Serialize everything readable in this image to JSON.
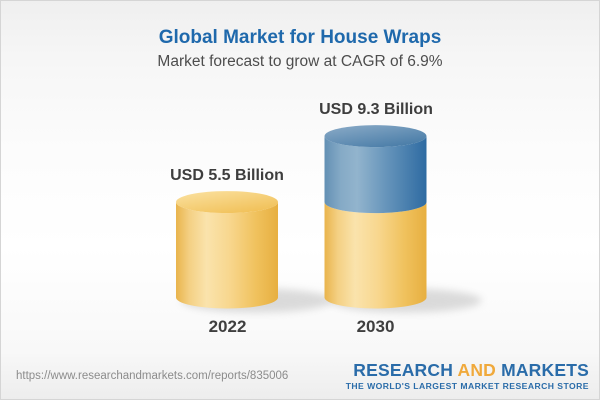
{
  "header": {
    "title": "Global Market for House Wraps",
    "subtitle": "Market forecast to grow at CAGR of 6.9%",
    "title_color": "#1F69AC"
  },
  "chart_data": {
    "type": "bar",
    "style": "3d-cylinder",
    "categories": [
      "2022",
      "2030"
    ],
    "values": [
      5.5,
      9.3
    ],
    "value_labels": [
      "USD 5.5 Billion",
      "USD 9.3 Billion"
    ],
    "unit": "USD Billion",
    "title": "Global Market for House Wraps",
    "subtitle": "Market forecast to grow at CAGR of 6.9%",
    "cagr_percent": 6.9,
    "ylim": [
      0,
      10
    ],
    "grid": false,
    "legend": "none",
    "series": [
      {
        "name": "base",
        "values": [
          5.5,
          5.5
        ],
        "color": "#F2C463"
      },
      {
        "name": "growth",
        "values": [
          0,
          3.8
        ],
        "color": "#4C80AA"
      }
    ],
    "bar_colors": {
      "base_yellow": "#F2C463",
      "growth_blue": "#4C80AA"
    }
  },
  "footer": {
    "url": "https://www.researchandmarkets.com/reports/835006",
    "logo": {
      "word1": "RESEARCH",
      "word2": "AND",
      "word3": "MARKETS",
      "tagline": "THE WORLD'S LARGEST MARKET RESEARCH STORE",
      "blue": "#2A6CA9",
      "orange": "#F0A93B"
    }
  }
}
